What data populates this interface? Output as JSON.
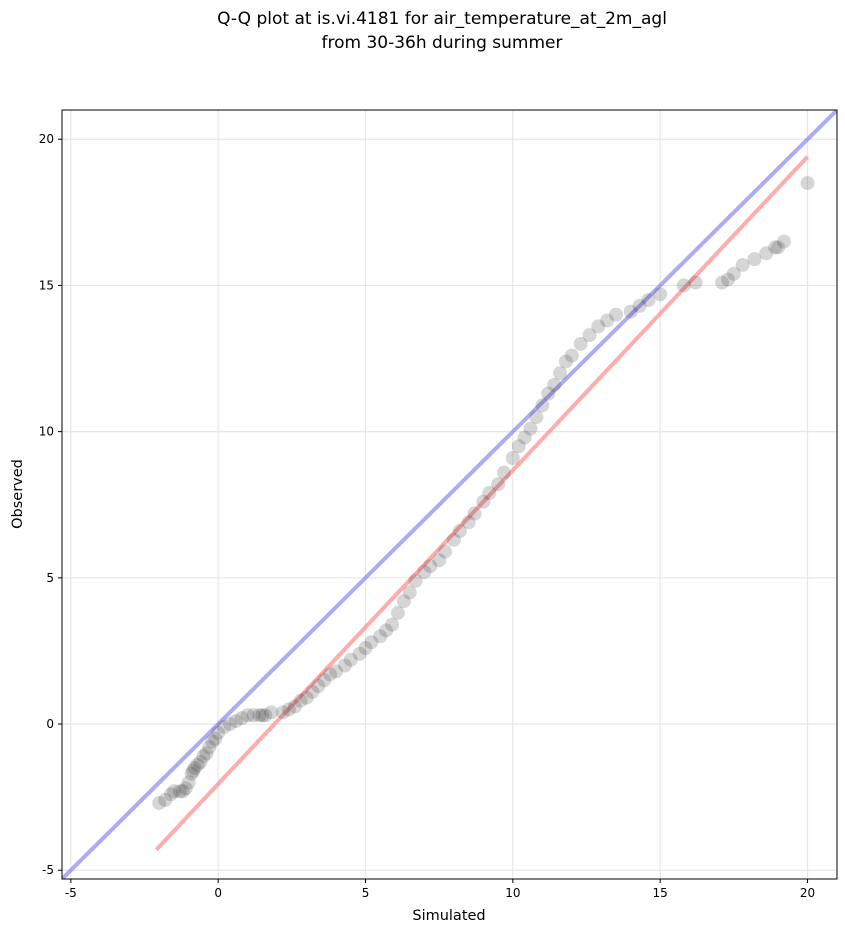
{
  "chart_data": {
    "type": "scatter",
    "title_lines": [
      "Q-Q plot at is.vi.4181 for air_temperature_at_2m_agl",
      "from 30-36h during summer"
    ],
    "xlabel": "Simulated",
    "ylabel": "Observed",
    "xlim": [
      -5.3,
      21.0
    ],
    "ylim": [
      -5.3,
      21.0
    ],
    "xticks": [
      -5,
      0,
      5,
      10,
      15,
      20
    ],
    "yticks": [
      -5,
      0,
      5,
      10,
      15,
      20
    ],
    "grid": true,
    "series": [
      {
        "kind": "points",
        "color": "#333333",
        "x": [
          -2.0,
          -1.8,
          -1.6,
          -1.5,
          -1.3,
          -1.2,
          -1.1,
          -1.0,
          -0.9,
          -0.85,
          -0.8,
          -0.7,
          -0.6,
          -0.5,
          -0.4,
          -0.3,
          -0.2,
          -0.1,
          0.0,
          0.2,
          0.4,
          0.6,
          0.8,
          1.0,
          1.2,
          1.4,
          1.5,
          1.6,
          1.8,
          2.2,
          2.4,
          2.6,
          2.8,
          3.0,
          3.2,
          3.4,
          3.6,
          3.8,
          4.0,
          4.3,
          4.5,
          4.8,
          5.0,
          5.2,
          5.5,
          5.7,
          5.9,
          6.1,
          6.3,
          6.5,
          6.7,
          7.0,
          7.2,
          7.5,
          7.7,
          8.0,
          8.2,
          8.5,
          8.7,
          9.0,
          9.2,
          9.5,
          9.7,
          10.0,
          10.2,
          10.4,
          10.6,
          10.8,
          11.0,
          11.2,
          11.4,
          11.6,
          11.8,
          12.0,
          12.3,
          12.6,
          12.9,
          13.2,
          13.5,
          14.0,
          14.3,
          14.6,
          15.0,
          15.8,
          16.2,
          17.1,
          17.3,
          17.5,
          17.8,
          18.2,
          18.6,
          18.9,
          19.0,
          19.2,
          20.0
        ],
        "y": [
          -2.7,
          -2.6,
          -2.4,
          -2.3,
          -2.3,
          -2.3,
          -2.2,
          -2.0,
          -1.7,
          -1.6,
          -1.5,
          -1.4,
          -1.3,
          -1.1,
          -1.0,
          -0.8,
          -0.6,
          -0.5,
          -0.3,
          -0.1,
          0.0,
          0.1,
          0.2,
          0.3,
          0.3,
          0.3,
          0.3,
          0.3,
          0.4,
          0.4,
          0.5,
          0.6,
          0.8,
          0.9,
          1.1,
          1.3,
          1.5,
          1.7,
          1.8,
          2.0,
          2.2,
          2.4,
          2.6,
          2.8,
          3.0,
          3.2,
          3.4,
          3.8,
          4.2,
          4.5,
          4.9,
          5.2,
          5.4,
          5.6,
          5.9,
          6.3,
          6.6,
          6.9,
          7.2,
          7.6,
          7.9,
          8.2,
          8.6,
          9.1,
          9.5,
          9.8,
          10.1,
          10.5,
          10.9,
          11.3,
          11.6,
          12.0,
          12.4,
          12.6,
          13.0,
          13.3,
          13.6,
          13.8,
          14.0,
          14.1,
          14.3,
          14.5,
          14.7,
          15.0,
          15.1,
          15.1,
          15.2,
          15.4,
          15.7,
          15.9,
          16.1,
          16.3,
          16.3,
          16.5,
          18.5
        ]
      },
      {
        "kind": "line",
        "color": "#ff8080",
        "x": [
          -2.1,
          20.0
        ],
        "y": [
          -4.3,
          19.4
        ]
      },
      {
        "kind": "line",
        "color": "#8080f0",
        "x": [
          -5.3,
          21.0
        ],
        "y": [
          -5.3,
          21.0
        ]
      }
    ]
  }
}
